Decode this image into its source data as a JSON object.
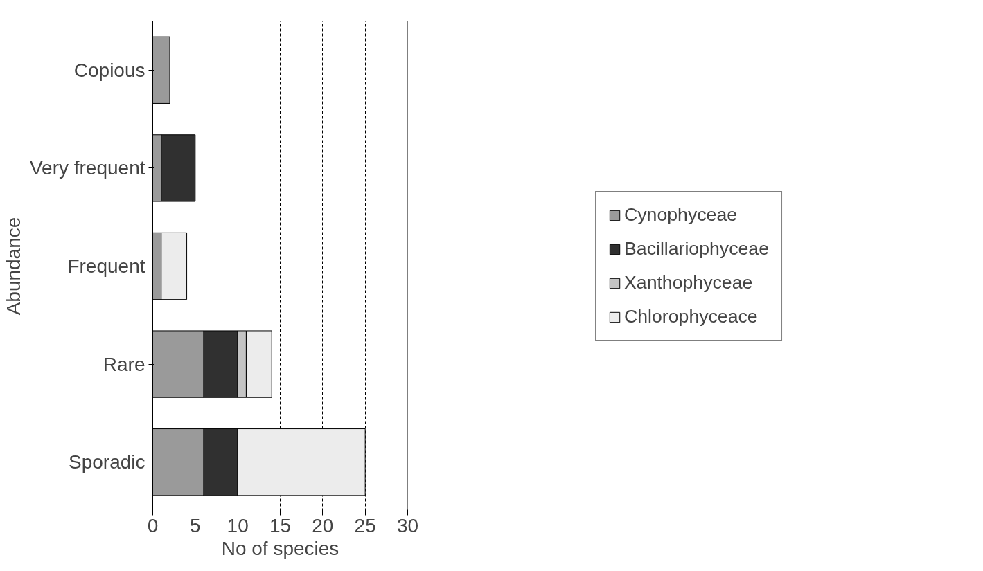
{
  "chart_data": {
    "type": "bar",
    "orientation": "horizontal",
    "stacked": true,
    "xlabel": "No of species",
    "ylabel": "Abundance",
    "categories": [
      "Copious",
      "Very frequent",
      "Frequent",
      "Rare",
      "Sporadic"
    ],
    "series": [
      {
        "name": "Cynophyceae",
        "color": "#9a9a9a",
        "values": [
          2,
          1,
          1,
          6,
          6
        ]
      },
      {
        "name": "Bacillariophyceae",
        "color": "#303030",
        "values": [
          null,
          4,
          null,
          4,
          4
        ]
      },
      {
        "name": "Xanthophyceae",
        "color": "#c4c4c4",
        "values": [
          null,
          null,
          null,
          1,
          null
        ]
      },
      {
        "name": "Chlorophyceace",
        "color": "#ececec",
        "values": [
          null,
          null,
          3,
          3,
          15
        ]
      }
    ],
    "xlim": [
      0,
      30
    ],
    "xticks": [
      0,
      5,
      10,
      15,
      20,
      25,
      30
    ],
    "grid": "x",
    "legend": "right"
  }
}
